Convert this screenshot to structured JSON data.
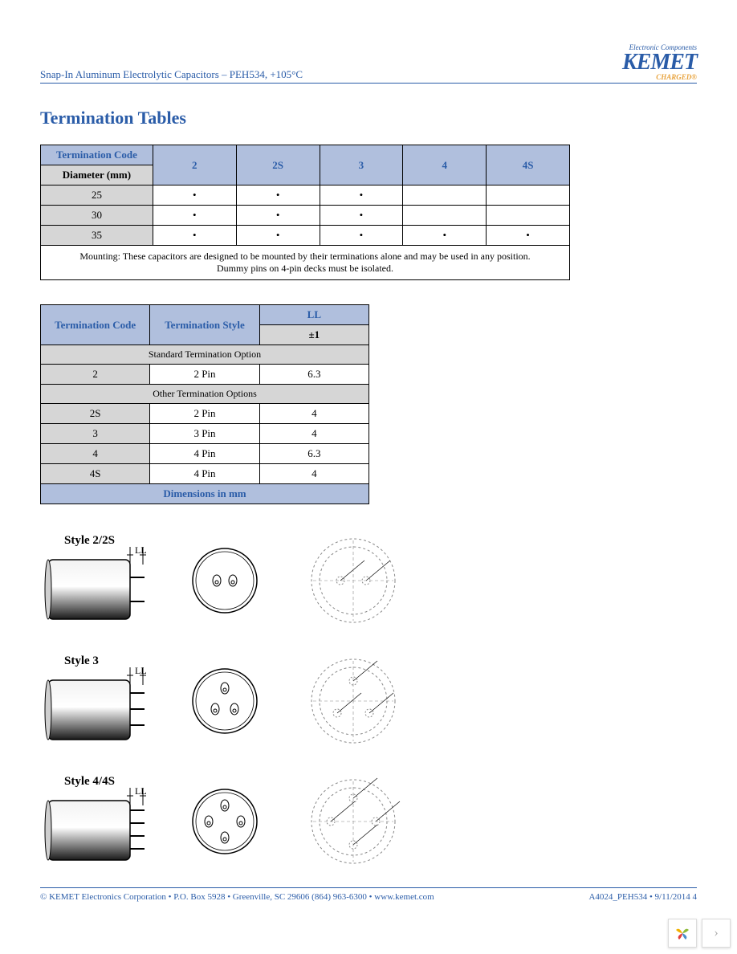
{
  "header": {
    "breadcrumb": "Snap-In Aluminum Electrolytic Capacitors – PEH534, +105°C",
    "logo_tagline": "Electronic Components",
    "logo_name": "KEMET",
    "logo_sub": "CHARGED®"
  },
  "section_title": "Termination Tables",
  "table1": {
    "head_code": "Termination Code",
    "head_diam": "Diameter (mm)",
    "cols": [
      "2",
      "2S",
      "3",
      "4",
      "4S"
    ],
    "rows": [
      {
        "diam": "25",
        "marks": [
          "•",
          "•",
          "•",
          "",
          ""
        ]
      },
      {
        "diam": "30",
        "marks": [
          "•",
          "•",
          "•",
          "",
          ""
        ]
      },
      {
        "diam": "35",
        "marks": [
          "•",
          "•",
          "•",
          "•",
          "•"
        ]
      }
    ],
    "note_l1": "Mounting: These capacitors are designed to be mounted by their terminations alone and may be used in any position.",
    "note_l2": "Dummy pins on 4-pin decks must be isolated."
  },
  "table2": {
    "head_code": "Termination Code",
    "head_style": "Termination Style",
    "head_ll": "LL",
    "head_tol": "±1",
    "sect1": "Standard Termination Option",
    "sect2": "Other Termination Options",
    "rows_std": [
      {
        "code": "2",
        "style": "2 Pin",
        "ll": "6.3"
      }
    ],
    "rows_other": [
      {
        "code": "2S",
        "style": "2 Pin",
        "ll": "4"
      },
      {
        "code": "3",
        "style": "3 Pin",
        "ll": "4"
      },
      {
        "code": "4",
        "style": "4 Pin",
        "ll": "6.3"
      },
      {
        "code": "4S",
        "style": "4 Pin",
        "ll": "4"
      }
    ],
    "footer": "Dimensions in mm"
  },
  "diagrams": {
    "rows": [
      {
        "label": "Style 2/2S",
        "ll": "LL",
        "pins": 2
      },
      {
        "label": "Style 3",
        "ll": "LL",
        "pins": 3
      },
      {
        "label": "Style 4/4S",
        "ll": "LL",
        "pins": 4
      }
    ],
    "colors": {
      "cap_fill_top": "#f2f2f2",
      "cap_fill_bot": "#1a1a1a",
      "stroke": "#000000",
      "dash": "#888888"
    }
  },
  "footer": {
    "left": "© KEMET Electronics Corporation • P.O. Box 5928 • Greenville, SC 29606 (864) 963-6300 • www.kemet.com",
    "right": "A4024_PEH534 • 9/11/2014   4"
  },
  "widget": {
    "petal_colors": [
      "#f2b100",
      "#8dbb3a",
      "#e23d3d",
      "#4a8ecc"
    ]
  }
}
